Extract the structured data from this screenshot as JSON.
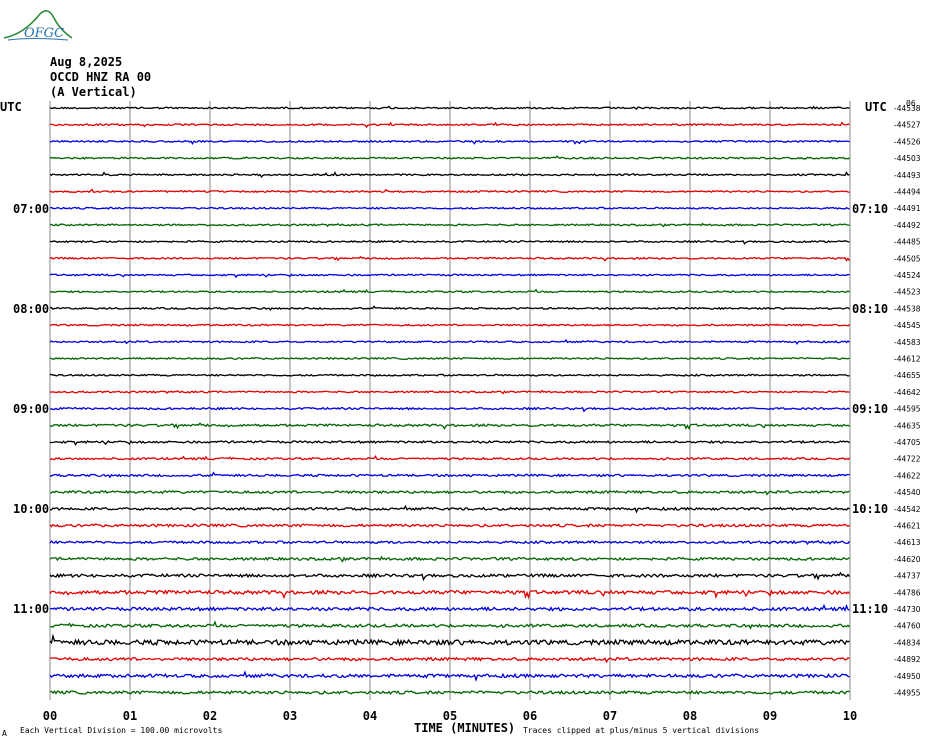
{
  "logo": {
    "text": "OFGC",
    "color": "#2a6fb0"
  },
  "header": {
    "date": "Aug 8,2025",
    "station": "OCCD HNZ RA 00",
    "component": "(A Vertical)"
  },
  "left_axis": {
    "label": "UTC",
    "hour_labels": [
      "07:00",
      "08:00",
      "09:00",
      "10:00",
      "11:00"
    ]
  },
  "right_axis": {
    "label": "UTC",
    "hour_labels": [
      "07:10",
      "08:10",
      "09:10",
      "10:10",
      "11:10"
    ],
    "top_marker": "06"
  },
  "footer": {
    "xlabel": "TIME (MINUTES)",
    "scale_note": "Each Vertical Division =  100.00 microvolts",
    "clip_note": "Traces clipped at plus/minus 5 vertical divisions",
    "corner_mark": "A"
  },
  "chart_data": {
    "type": "line",
    "title": "OCCD HNZ RA 00 (A Vertical)",
    "xlabel": "TIME (MINUTES)",
    "ylabel": "UTC",
    "xlim": [
      0,
      10
    ],
    "x_ticks": [
      "00",
      "01",
      "02",
      "03",
      "04",
      "05",
      "06",
      "07",
      "08",
      "09",
      "10"
    ],
    "trace_colors": [
      "#000000",
      "#e00000",
      "#0000e0",
      "#006400"
    ],
    "traces_per_hour": 6,
    "grid": true,
    "trace_offsets": [
      -44538,
      -44527,
      -44526,
      -44503,
      -44493,
      -44494,
      -44491,
      -44492,
      -44485,
      -44505,
      -44524,
      -44523,
      -44538,
      -44545,
      -44583,
      -44612,
      -44655,
      -44642,
      -44595,
      -44635,
      -44705,
      -44722,
      -44622,
      -44540,
      -44542,
      -44621,
      -44613,
      -44620,
      -44737,
      -44786,
      -44730,
      -44760,
      -44834,
      -44892,
      -44950,
      -44955
    ],
    "trace_amplitude": [
      1,
      1,
      1,
      1,
      1,
      1,
      1,
      1,
      1,
      1,
      1,
      1,
      1,
      1,
      1,
      1,
      1,
      1,
      1.2,
      1.4,
      1.3,
      1.2,
      1.3,
      1.5,
      1.5,
      1.6,
      1.4,
      1.6,
      1.8,
      2.2,
      2.0,
      1.8,
      3.0,
      1.8,
      2.0,
      1.8
    ]
  }
}
